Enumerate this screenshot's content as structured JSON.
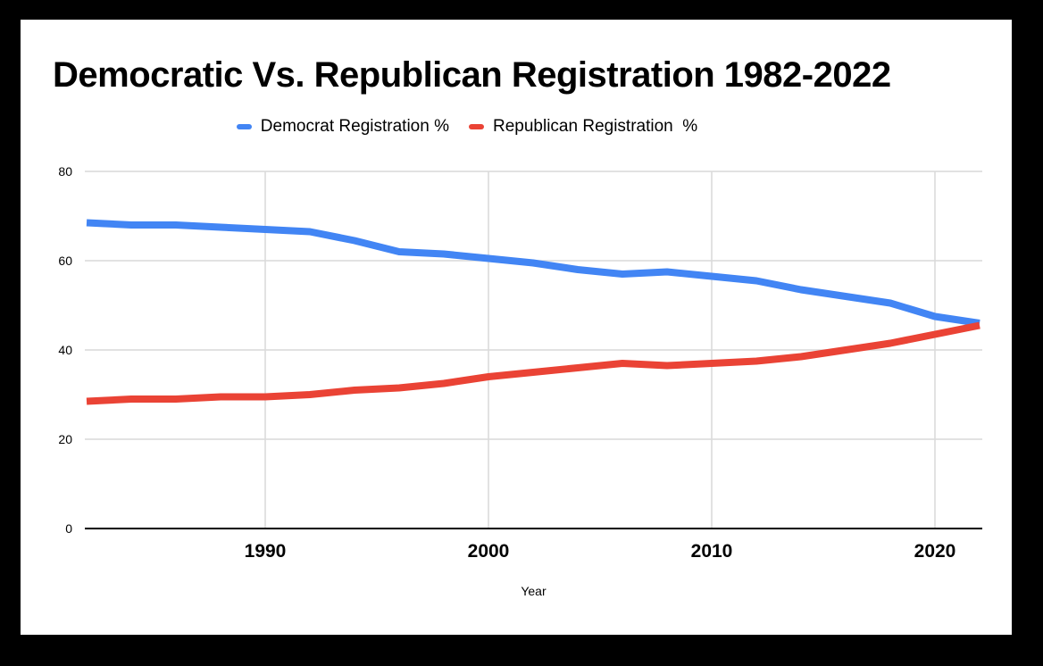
{
  "title": "Democratic Vs. Republican Registration 1982-2022",
  "legend": [
    {
      "label": "Democrat Registration %",
      "color": "#4285F4"
    },
    {
      "label": "Republican Registration  %",
      "color": "#EA4335"
    }
  ],
  "colors": {
    "background": "#000000",
    "card": "#ffffff",
    "gridline": "#d9d9d9",
    "axis": "#000000",
    "tick_text": "#000000"
  },
  "chart_data": {
    "type": "line",
    "title": "Democratic Vs. Republican Registration 1982-2022",
    "xlabel": "Year",
    "ylabel": "",
    "x": [
      1982,
      1984,
      1986,
      1988,
      1990,
      1992,
      1994,
      1996,
      1998,
      2000,
      2002,
      2004,
      2006,
      2008,
      2010,
      2012,
      2014,
      2016,
      2018,
      2020,
      2022
    ],
    "series": [
      {
        "name": "Democrat Registration %",
        "color": "#4285F4",
        "values": [
          68.5,
          68,
          68,
          67.5,
          67,
          66.5,
          64.5,
          62,
          61.5,
          60.5,
          59.5,
          58,
          57,
          57.5,
          56.5,
          55.5,
          53.5,
          52,
          50.5,
          47.5,
          46
        ]
      },
      {
        "name": "Republican Registration  %",
        "color": "#EA4335",
        "values": [
          28.5,
          29,
          29,
          29.5,
          29.5,
          30,
          31,
          31.5,
          32.5,
          34,
          35,
          36,
          37,
          36.5,
          37,
          37.5,
          38.5,
          40,
          41.5,
          43.5,
          45.5
        ]
      }
    ],
    "x_ticks": [
      1990,
      2000,
      2010,
      2020
    ],
    "y_ticks": [
      0,
      20,
      40,
      60,
      80
    ],
    "xlim": [
      1982,
      2022.2
    ],
    "ylim": [
      0,
      80
    ],
    "grid": true,
    "legend_position": "top"
  }
}
